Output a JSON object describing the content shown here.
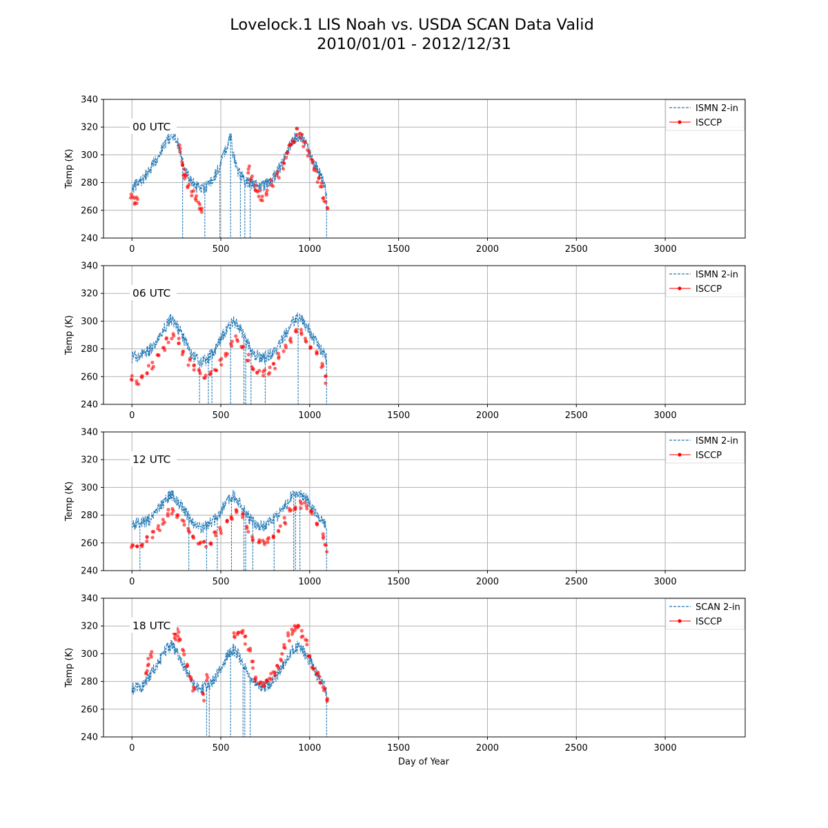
{
  "figure": {
    "title_line1": "Lovelock.1 LIS Noah vs. USDA SCAN Data Valid",
    "title_line2": "2010/01/01 - 2012/12/31",
    "xlabel": "Day of Year"
  },
  "chart_data": [
    {
      "type": "line",
      "panel_label": "00 UTC",
      "ylabel": "Temp (K)",
      "xlim": [
        -160,
        3450
      ],
      "ylim": [
        240,
        340
      ],
      "xticks": [
        0,
        500,
        1000,
        1500,
        2000,
        2500,
        3000
      ],
      "yticks": [
        240,
        260,
        280,
        300,
        320,
        340
      ],
      "grid": true,
      "legend_position": "top-right",
      "series": [
        {
          "name": "ISMN 2-in",
          "style": "dashed",
          "color": "#1f77b4",
          "x": [
            0,
            30,
            60,
            90,
            120,
            150,
            180,
            200,
            230,
            250,
            270,
            285,
            300,
            330,
            360,
            390,
            420,
            450,
            480,
            510,
            540,
            555,
            570,
            600,
            630,
            660,
            690,
            720,
            750,
            780,
            810,
            840,
            870,
            900,
            930,
            960,
            990,
            1020,
            1050,
            1080,
            1095
          ],
          "y": [
            276,
            279,
            282,
            287,
            293,
            300,
            307,
            311,
            313,
            311,
            304,
            295,
            288,
            282,
            277,
            275,
            277,
            281,
            288,
            298,
            308,
            314,
            300,
            287,
            282,
            280,
            278,
            277,
            278,
            282,
            286,
            292,
            301,
            310,
            314,
            312,
            305,
            296,
            288,
            279,
            272
          ],
          "dropouts": [
            285,
            410,
            495,
            555,
            610,
            635,
            665,
            1095
          ]
        },
        {
          "name": "ISCCP",
          "style": "markers",
          "color": "#ff0000",
          "x": [
            0,
            10,
            25,
            270,
            280,
            290,
            300,
            320,
            340,
            360,
            375,
            390,
            655,
            670,
            690,
            710,
            730,
            760,
            790,
            820,
            850,
            870,
            890,
            910,
            930,
            950,
            970,
            990,
            1010,
            1030,
            1050,
            1065,
            1080,
            1095
          ],
          "y": [
            270,
            266,
            267,
            305,
            292,
            288,
            284,
            278,
            272,
            268,
            264,
            261,
            290,
            282,
            276,
            272,
            270,
            274,
            280,
            286,
            292,
            299,
            306,
            312,
            316,
            314,
            308,
            302,
            296,
            290,
            283,
            277,
            269,
            263
          ]
        }
      ]
    },
    {
      "type": "line",
      "panel_label": "06 UTC",
      "ylabel": "Temp (K)",
      "xlim": [
        -160,
        3450
      ],
      "ylim": [
        240,
        340
      ],
      "xticks": [
        0,
        500,
        1000,
        1500,
        2000,
        2500,
        3000
      ],
      "yticks": [
        240,
        260,
        280,
        300,
        320,
        340
      ],
      "grid": true,
      "legend_position": "top-right",
      "series": [
        {
          "name": "ISMN 2-in",
          "style": "dashed",
          "color": "#1f77b4",
          "x": [
            0,
            30,
            60,
            90,
            120,
            150,
            180,
            200,
            220,
            240,
            270,
            300,
            330,
            360,
            390,
            420,
            450,
            480,
            510,
            540,
            570,
            600,
            630,
            660,
            690,
            720,
            750,
            780,
            810,
            840,
            870,
            900,
            930,
            960,
            990,
            1020,
            1050,
            1080,
            1095
          ],
          "y": [
            274,
            275,
            276,
            278,
            282,
            288,
            294,
            299,
            301,
            299,
            293,
            285,
            278,
            273,
            271,
            272,
            276,
            282,
            289,
            296,
            300,
            296,
            289,
            281,
            276,
            274,
            274,
            276,
            279,
            285,
            292,
            298,
            302,
            300,
            295,
            288,
            282,
            276,
            272
          ],
          "dropouts": [
            380,
            430,
            450,
            555,
            630,
            640,
            670,
            750,
            935,
            1095
          ]
        },
        {
          "name": "ISCCP",
          "style": "markers",
          "color": "#ff0000",
          "x": [
            0,
            30,
            60,
            90,
            120,
            150,
            180,
            200,
            230,
            260,
            290,
            320,
            350,
            380,
            410,
            440,
            470,
            500,
            530,
            560,
            590,
            620,
            650,
            680,
            710,
            740,
            770,
            800,
            830,
            860,
            890,
            920,
            950,
            980,
            1010,
            1040,
            1070,
            1090
          ],
          "y": [
            258,
            257,
            262,
            265,
            268,
            273,
            280,
            286,
            290,
            286,
            278,
            270,
            266,
            264,
            262,
            262,
            265,
            270,
            277,
            284,
            287,
            283,
            274,
            266,
            263,
            262,
            264,
            268,
            274,
            281,
            287,
            291,
            292,
            288,
            283,
            276,
            268,
            258
          ]
        }
      ]
    },
    {
      "type": "line",
      "panel_label": "12 UTC",
      "ylabel": "Temp (K)",
      "xlim": [
        -160,
        3450
      ],
      "ylim": [
        240,
        340
      ],
      "xticks": [
        0,
        500,
        1000,
        1500,
        2000,
        2500,
        3000
      ],
      "yticks": [
        240,
        260,
        280,
        300,
        320,
        340
      ],
      "grid": true,
      "legend_position": "top-right",
      "series": [
        {
          "name": "ISMN 2-in",
          "style": "dashed",
          "color": "#1f77b4",
          "x": [
            0,
            30,
            60,
            90,
            120,
            150,
            180,
            200,
            220,
            240,
            270,
            300,
            330,
            360,
            390,
            420,
            450,
            480,
            510,
            540,
            570,
            600,
            630,
            660,
            690,
            720,
            750,
            780,
            810,
            840,
            870,
            900,
            930,
            960,
            990,
            1020,
            1050,
            1080,
            1095
          ],
          "y": [
            273,
            274,
            275,
            276,
            279,
            284,
            289,
            293,
            295,
            293,
            288,
            282,
            276,
            272,
            271,
            272,
            275,
            279,
            285,
            291,
            294,
            290,
            284,
            278,
            275,
            273,
            273,
            275,
            278,
            283,
            289,
            294,
            297,
            295,
            290,
            284,
            279,
            274,
            270
          ],
          "dropouts": [
            45,
            320,
            420,
            480,
            560,
            630,
            640,
            680,
            800,
            910,
            920,
            945,
            1095
          ]
        },
        {
          "name": "ISCCP",
          "style": "markers",
          "color": "#ff0000",
          "x": [
            0,
            30,
            60,
            90,
            120,
            150,
            180,
            200,
            230,
            260,
            290,
            320,
            350,
            380,
            410,
            440,
            470,
            500,
            530,
            560,
            590,
            620,
            650,
            680,
            710,
            740,
            770,
            800,
            830,
            860,
            890,
            920,
            950,
            980,
            1010,
            1040,
            1070,
            1090
          ],
          "y": [
            258,
            259,
            260,
            263,
            266,
            270,
            276,
            281,
            283,
            281,
            276,
            268,
            262,
            260,
            260,
            261,
            265,
            270,
            275,
            279,
            281,
            278,
            271,
            264,
            261,
            260,
            262,
            265,
            270,
            276,
            282,
            286,
            288,
            286,
            281,
            274,
            266,
            256
          ]
        }
      ]
    },
    {
      "type": "line",
      "panel_label": "18 UTC",
      "ylabel": "Temp (K)",
      "xlim": [
        -160,
        3450
      ],
      "ylim": [
        240,
        340
      ],
      "xticks": [
        0,
        500,
        1000,
        1500,
        2000,
        2500,
        3000
      ],
      "yticks": [
        240,
        260,
        280,
        300,
        320,
        340
      ],
      "grid": true,
      "legend_position": "top-right",
      "series": [
        {
          "name": "SCAN 2-in",
          "style": "dashed",
          "color": "#1f77b4",
          "x": [
            0,
            30,
            60,
            90,
            120,
            150,
            180,
            200,
            220,
            240,
            270,
            300,
            330,
            360,
            390,
            420,
            450,
            480,
            510,
            540,
            570,
            600,
            630,
            660,
            690,
            720,
            750,
            780,
            810,
            840,
            870,
            900,
            930,
            960,
            990,
            1020,
            1050,
            1080,
            1095
          ],
          "y": [
            275,
            275,
            277,
            282,
            288,
            294,
            300,
            304,
            306,
            304,
            297,
            289,
            282,
            277,
            275,
            276,
            279,
            285,
            292,
            299,
            303,
            299,
            291,
            284,
            279,
            277,
            277,
            279,
            283,
            289,
            296,
            302,
            305,
            303,
            297,
            290,
            283,
            277,
            272
          ],
          "dropouts": [
            420,
            435,
            555,
            625,
            635,
            665,
            1095
          ]
        },
        {
          "name": "ISCCP",
          "style": "markers",
          "color": "#ff0000",
          "x": [
            80,
            90,
            110,
            240,
            250,
            260,
            270,
            290,
            310,
            330,
            350,
            400,
            420,
            580,
            600,
            620,
            640,
            660,
            680,
            700,
            720,
            740,
            760,
            780,
            800,
            820,
            840,
            860,
            880,
            900,
            920,
            940,
            960,
            980,
            1000,
            1020,
            1040,
            1060,
            1080,
            1095
          ],
          "y": [
            287,
            294,
            300,
            313,
            314,
            315,
            310,
            300,
            290,
            281,
            276,
            269,
            283,
            312,
            315,
            314,
            310,
            302,
            292,
            282,
            279,
            278,
            280,
            283,
            286,
            290,
            297,
            305,
            312,
            317,
            319,
            318,
            314,
            308,
            300,
            292,
            286,
            281,
            275,
            267
          ]
        }
      ]
    }
  ]
}
